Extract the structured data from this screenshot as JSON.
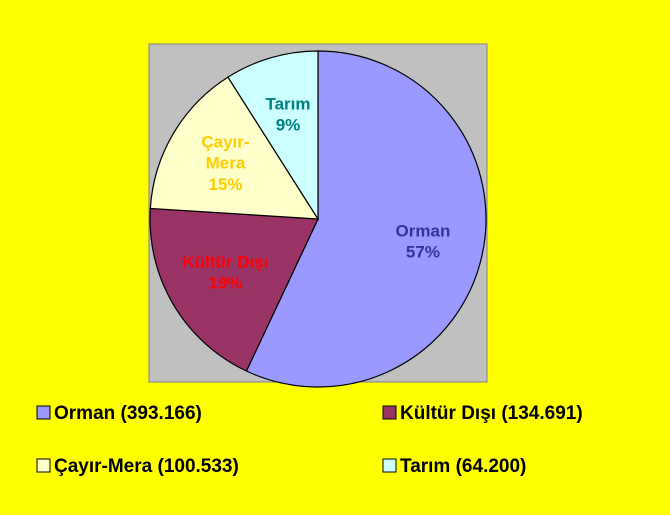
{
  "chart_data": {
    "type": "pie",
    "categories": [
      "Orman",
      "Kültür Dışı",
      "Çayır-Mera",
      "Tarım"
    ],
    "values": [
      57,
      19,
      15,
      9
    ],
    "value_labels": [
      "57%",
      "19%",
      "15%",
      "9%"
    ],
    "colors": [
      "#9999ff",
      "#993366",
      "#ffffcc",
      "#ccffff"
    ],
    "label_colors": [
      "#333399",
      "#ff0000",
      "#ffcc00",
      "#008080"
    ],
    "legend_labels": [
      "Orman (393.166)",
      "Kültür Dışı (134.691)",
      "Çayır-Mera (100.533)",
      "Tarım (64.200)"
    ],
    "legend": "bottom"
  }
}
